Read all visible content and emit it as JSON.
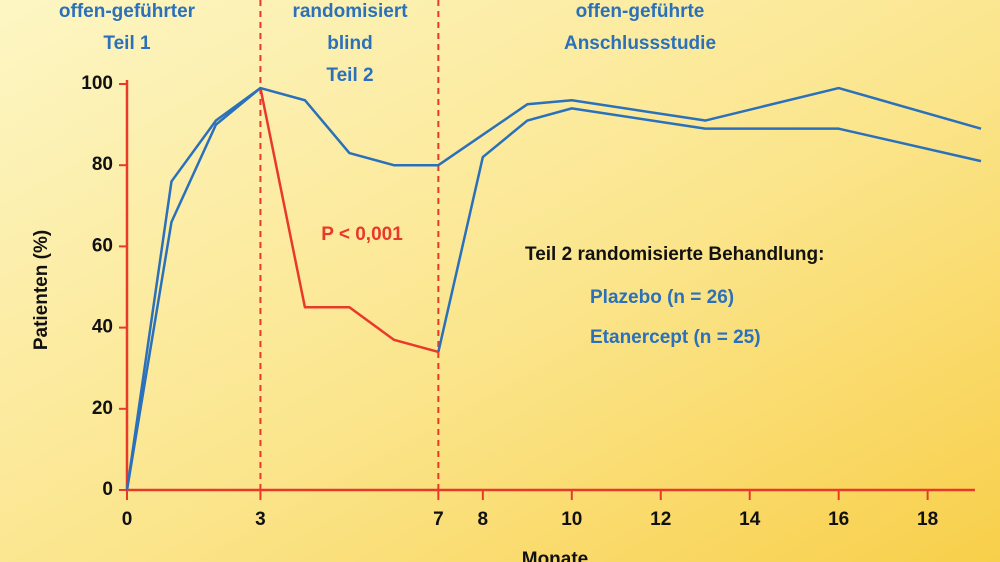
{
  "chart_data": {
    "type": "line",
    "section_labels": [
      [
        "offen-geführter",
        "Teil 1"
      ],
      [
        "randomisiert",
        "blind",
        "Teil 2"
      ],
      [
        "offen-geführte",
        "Anschlussstudie"
      ]
    ],
    "x_label": "Monate",
    "y_label": "Patienten (%)",
    "annotation": "P < 0,001",
    "annotation_color": "#e8392b",
    "legend_title": "Teil 2 randomisierte Behandlung:",
    "xlim": [
      0,
      19.2
    ],
    "ylim": [
      0,
      100
    ],
    "xticks": [
      0,
      3,
      7,
      8,
      10,
      12,
      14,
      16,
      18
    ],
    "yticks": [
      0,
      20,
      40,
      60,
      80,
      100
    ],
    "vlines": [
      3,
      7
    ],
    "axis_color": "#e8392b",
    "series": [
      {
        "name": "Plazebo (n = 26)",
        "color": "#2a70ba",
        "x": [
          0,
          1,
          2,
          3,
          4,
          5,
          6,
          7,
          8,
          9,
          10,
          13,
          16,
          19.2
        ],
        "values": [
          0,
          66,
          90,
          99,
          45,
          45,
          37,
          34,
          82,
          91,
          94,
          89,
          89,
          81
        ],
        "highlight": {
          "x_from": 3,
          "x_to": 7,
          "color": "#e8392b"
        }
      },
      {
        "name": "Etanercept (n = 25)",
        "color": "#2a70ba",
        "x": [
          0,
          1,
          2,
          3,
          4,
          5,
          6,
          7,
          9,
          10,
          13,
          16,
          19.2
        ],
        "values": [
          0,
          76,
          91,
          99,
          96,
          83,
          80,
          80,
          95,
          96,
          91,
          99,
          89
        ]
      }
    ]
  }
}
